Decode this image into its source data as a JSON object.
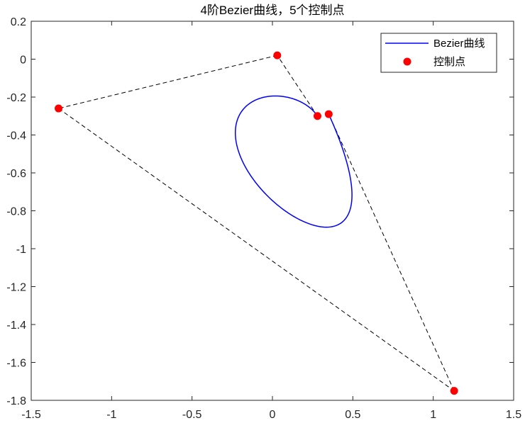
{
  "chart_data": {
    "type": "line",
    "title": "4阶Bezier曲线，5个控制点",
    "xlabel": "",
    "ylabel": "",
    "xlim": [
      -1.5,
      1.5
    ],
    "ylim": [
      -1.8,
      0.2
    ],
    "xticks": [
      -1.5,
      -1,
      -0.5,
      0,
      0.5,
      1,
      1.5
    ],
    "xtick_labels": [
      "-1.5",
      "-1",
      "-0.5",
      "0",
      "0.5",
      "1",
      "1.5"
    ],
    "yticks": [
      0.2,
      0,
      -0.2,
      -0.4,
      -0.6,
      -0.8,
      -1,
      -1.2,
      -1.4,
      -1.6,
      -1.8
    ],
    "ytick_labels": [
      "0.2",
      "0",
      "-0.2",
      "-0.4",
      "-0.6",
      "-0.8",
      "-1",
      "-1.2",
      "-1.4",
      "-1.6",
      "-1.8"
    ],
    "grid": false,
    "legend_position": "top-right",
    "control_points": {
      "name": "控制点",
      "color": "#ff0000",
      "x": [
        0.28,
        0.03,
        -1.33,
        1.13,
        0.35
      ],
      "y": [
        -0.3,
        0.02,
        -0.26,
        -1.75,
        -0.29
      ]
    },
    "control_polygon": {
      "color": "#000000",
      "style": "dashed"
    },
    "curve": {
      "name": "Bezier曲线",
      "color": "#0000ff",
      "samples": 200
    },
    "legend": [
      {
        "label": "Bezier曲线",
        "marker": "line",
        "color": "#0000ff"
      },
      {
        "label": "控制点",
        "marker": "dot",
        "color": "#ff0000"
      }
    ]
  }
}
